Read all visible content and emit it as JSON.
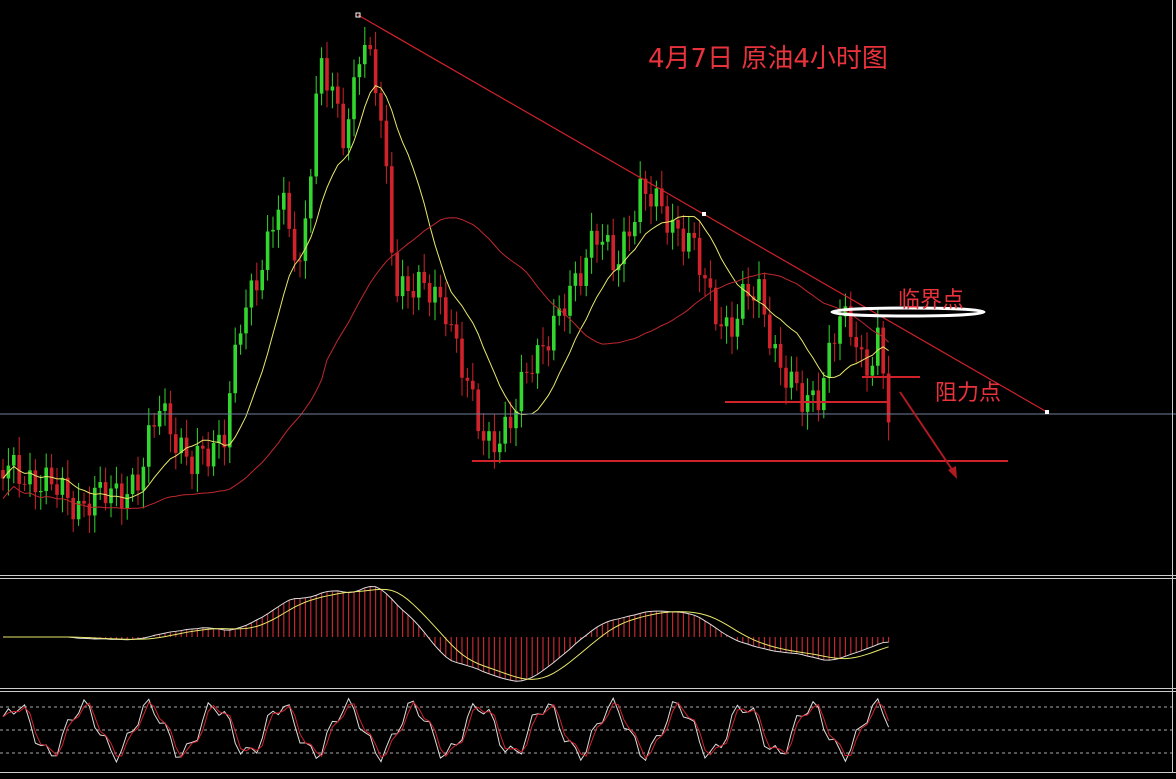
{
  "title": "4月7日 原油4小时图",
  "annotations": {
    "critical": "临界点",
    "resistance": "阻力点"
  }
}
